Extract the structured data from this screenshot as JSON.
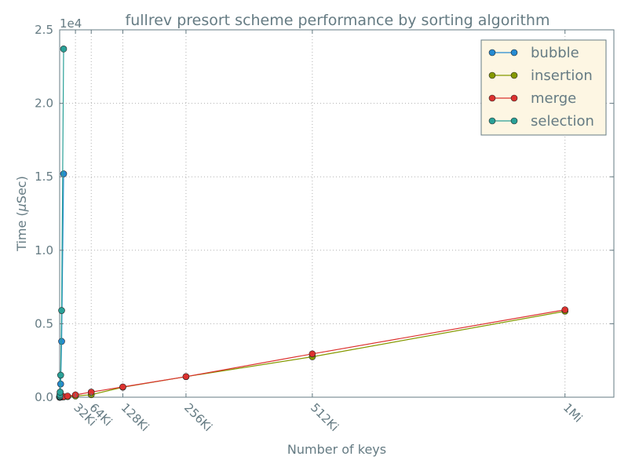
{
  "chart_data": {
    "type": "line",
    "title": "fullrev presort scheme performance by sorting algorithm",
    "xlabel": "Number of keys",
    "ylabel": "Time ($\\mu$Sec)",
    "ylabel_parts": {
      "prefix": "Time (",
      "mu": "μ",
      "suffix": "Sec)"
    },
    "y_exponent_label": "1e4",
    "xlim": [
      0,
      1150000
    ],
    "ylim": [
      0,
      25000
    ],
    "grid": true,
    "legend_position": "top-right",
    "x_ticks": [
      {
        "value": 32768,
        "label": "32Ki"
      },
      {
        "value": 65536,
        "label": "64Ki"
      },
      {
        "value": 131072,
        "label": "128Ki"
      },
      {
        "value": 262144,
        "label": "256Ki"
      },
      {
        "value": 524288,
        "label": "512Ki"
      },
      {
        "value": 1048576,
        "label": "1Mi"
      }
    ],
    "y_ticks": [
      {
        "value": 0,
        "label": "0.0"
      },
      {
        "value": 5000,
        "label": "0.5"
      },
      {
        "value": 10000,
        "label": "1.0"
      },
      {
        "value": 15000,
        "label": "1.5"
      },
      {
        "value": 20000,
        "label": "2.0"
      },
      {
        "value": 25000,
        "label": "2.5"
      }
    ],
    "series": [
      {
        "name": "bubble",
        "color": "#268bd2",
        "points": [
          [
            32,
            5
          ],
          [
            64,
            10
          ],
          [
            128,
            20
          ],
          [
            256,
            40
          ],
          [
            512,
            100
          ],
          [
            1024,
            280
          ],
          [
            2048,
            900
          ],
          [
            4096,
            3800
          ],
          [
            8192,
            15200
          ]
        ]
      },
      {
        "name": "insertion",
        "color": "#859900",
        "points": [
          [
            32,
            5
          ],
          [
            64,
            5
          ],
          [
            128,
            5
          ],
          [
            256,
            10
          ],
          [
            512,
            10
          ],
          [
            1024,
            10
          ],
          [
            2048,
            10
          ],
          [
            4096,
            15
          ],
          [
            8192,
            20
          ],
          [
            16384,
            40
          ],
          [
            32768,
            80
          ],
          [
            65536,
            170
          ],
          [
            131072,
            680
          ],
          [
            262144,
            1400
          ],
          [
            524288,
            2750
          ],
          [
            1048576,
            5850
          ]
        ]
      },
      {
        "name": "merge",
        "color": "#dc322f",
        "points": [
          [
            32,
            5
          ],
          [
            64,
            5
          ],
          [
            128,
            5
          ],
          [
            256,
            10
          ],
          [
            512,
            10
          ],
          [
            1024,
            10
          ],
          [
            2048,
            10
          ],
          [
            4096,
            20
          ],
          [
            8192,
            40
          ],
          [
            16384,
            80
          ],
          [
            32768,
            160
          ],
          [
            65536,
            350
          ],
          [
            131072,
            700
          ],
          [
            262144,
            1400
          ],
          [
            524288,
            2950
          ],
          [
            1048576,
            5950
          ]
        ]
      },
      {
        "name": "selection",
        "color": "#2aa198",
        "points": [
          [
            32,
            5
          ],
          [
            64,
            10
          ],
          [
            128,
            20
          ],
          [
            256,
            60
          ],
          [
            512,
            150
          ],
          [
            1024,
            350
          ],
          [
            2048,
            1500
          ],
          [
            4096,
            5900
          ],
          [
            8192,
            23700
          ]
        ]
      }
    ]
  },
  "colors": {
    "axis": "#657b83",
    "legend_bg": "#fdf6e3",
    "grid": "#b0b0b0"
  }
}
